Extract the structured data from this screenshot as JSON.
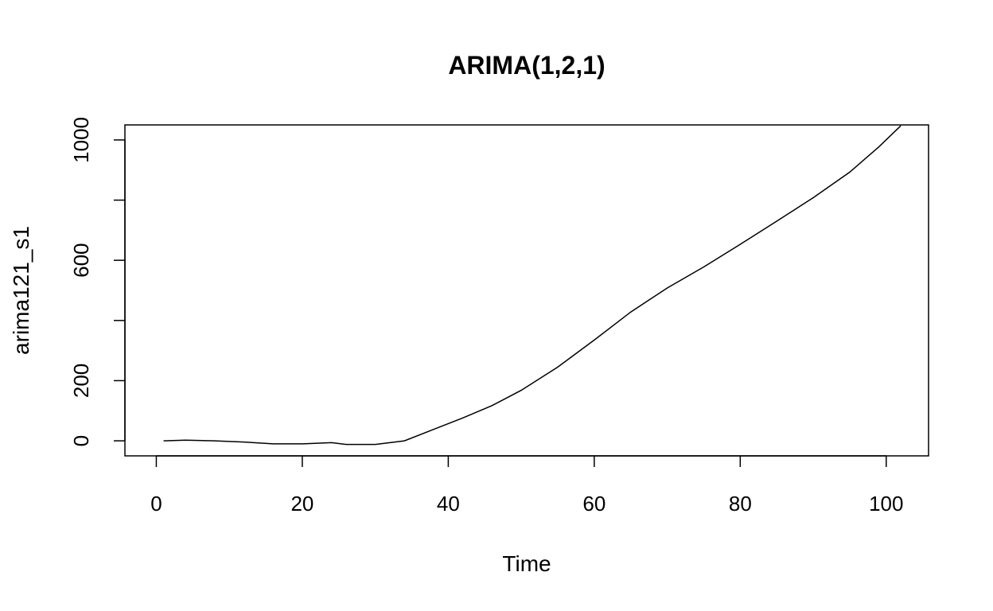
{
  "chart_data": {
    "type": "line",
    "title": "ARIMA(1,2,1)",
    "xlabel": "Time",
    "ylabel": "arima121_s1",
    "xlim": [
      -4.3,
      105.8
    ],
    "ylim": [
      -50,
      1050
    ],
    "x_ticks": [
      0,
      20,
      40,
      60,
      80,
      100
    ],
    "x_tick_labels": [
      "0",
      "20",
      "40",
      "60",
      "80",
      "100"
    ],
    "y_ticks": [
      0,
      200,
      400,
      600,
      800,
      1000
    ],
    "y_tick_labels": [
      "0",
      "200",
      "",
      "600",
      "",
      "1000"
    ],
    "grid": false,
    "series": [
      {
        "x": [
          1,
          4,
          8,
          12,
          16,
          20,
          24,
          26,
          30,
          34,
          38,
          42,
          46,
          50,
          55,
          60,
          65,
          70,
          75,
          80,
          85,
          90,
          95,
          99,
          102
        ],
        "values": [
          0,
          2,
          0,
          -4,
          -10,
          -10,
          -6,
          -12,
          -12,
          0,
          38,
          76,
          117,
          168,
          245,
          335,
          428,
          508,
          578,
          653,
          730,
          808,
          893,
          977,
          1047
        ]
      }
    ],
    "colors": {
      "line": "#000000",
      "background": "#ffffff"
    }
  }
}
